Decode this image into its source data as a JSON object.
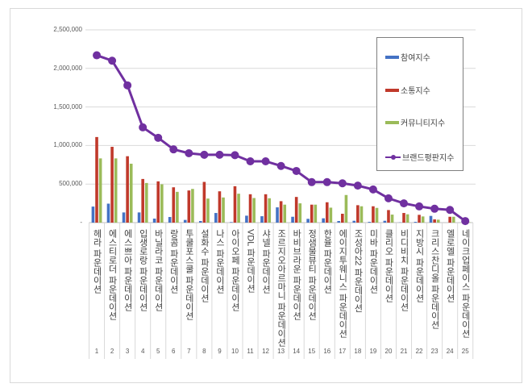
{
  "chart_data": {
    "type": "bar",
    "title": "",
    "xlabel": "",
    "ylabel": "",
    "ylim": [
      0,
      2500000
    ],
    "yticks": [
      "-",
      "500,000",
      "1,000,000",
      "1,500,000",
      "2,000,000",
      "2,500,000"
    ],
    "grid": true,
    "legend_position": "top-right",
    "rank_numbers": [
      "1",
      "2",
      "3",
      "4",
      "5",
      "6",
      "7",
      "8",
      "9",
      "10",
      "11",
      "12",
      "13",
      "14",
      "15",
      "16",
      "17",
      "18",
      "19",
      "20",
      "21",
      "22",
      "23",
      "24",
      "25"
    ],
    "categories": [
      "헤라 파운데이션",
      "에스티로더 파운데이션",
      "에스쁘아 파운데이션",
      "입생로랑 파운데이션",
      "바닐라코 파운데이션",
      "랑콤 파운데이션",
      "투쿨포스쿨 파운데이션",
      "설화수 파운데이션",
      "나스 파운데이션",
      "아이오페 파운데이션",
      "VDL 파운데이션",
      "샤넬 파운데이션",
      "조르지오아르마니 파운데이션",
      "바비브라운 파운데이션",
      "정샘물뷰티 파운데이션",
      "한율 파운데이션",
      "에이지투웨니스 파운데이션",
      "조성아22 파운데이션",
      "미바 파운데이션",
      "클리오 파운데이션",
      "비디비치 파운데이션",
      "지방시 파운데이션",
      "크리스찬디올 파운데이션",
      "엘로엘 파운데이션",
      "네이크업페이스 파운데이션"
    ],
    "series": [
      {
        "name": "참여지수",
        "type": "bar",
        "color": "#4472c4",
        "values": [
          208000,
          246000,
          132000,
          132000,
          52000,
          73000,
          35000,
          21000,
          125000,
          7000,
          90000,
          83000,
          198000,
          76000,
          49000,
          56000,
          21000,
          24000,
          10000,
          24000,
          3000,
          10000,
          87000,
          0,
          0
        ]
      },
      {
        "name": "소통지수",
        "type": "bar",
        "color": "#c0392b",
        "values": [
          1110000,
          983000,
          861000,
          566000,
          535000,
          458000,
          417000,
          528000,
          406000,
          472000,
          368000,
          368000,
          278000,
          333000,
          233000,
          264000,
          115000,
          226000,
          212000,
          163000,
          125000,
          101000,
          42000,
          76000,
          5000
        ]
      },
      {
        "name": "커뮤니티지수",
        "type": "bar",
        "color": "#9bbb59",
        "values": [
          833000,
          833000,
          764000,
          514000,
          497000,
          399000,
          437000,
          312000,
          326000,
          375000,
          319000,
          316000,
          233000,
          250000,
          233000,
          194000,
          358000,
          212000,
          191000,
          104000,
          108000,
          80000,
          38000,
          76000,
          5000
        ]
      },
      {
        "name": "브랜드평판지수",
        "type": "line",
        "color": "#7030a0",
        "values": [
          2170000,
          2100000,
          1780000,
          1235000,
          1100000,
          950000,
          900000,
          880000,
          880000,
          875000,
          795000,
          795000,
          735000,
          670000,
          525000,
          525000,
          510000,
          480000,
          430000,
          315000,
          250000,
          210000,
          180000,
          165000,
          20000
        ]
      }
    ]
  }
}
